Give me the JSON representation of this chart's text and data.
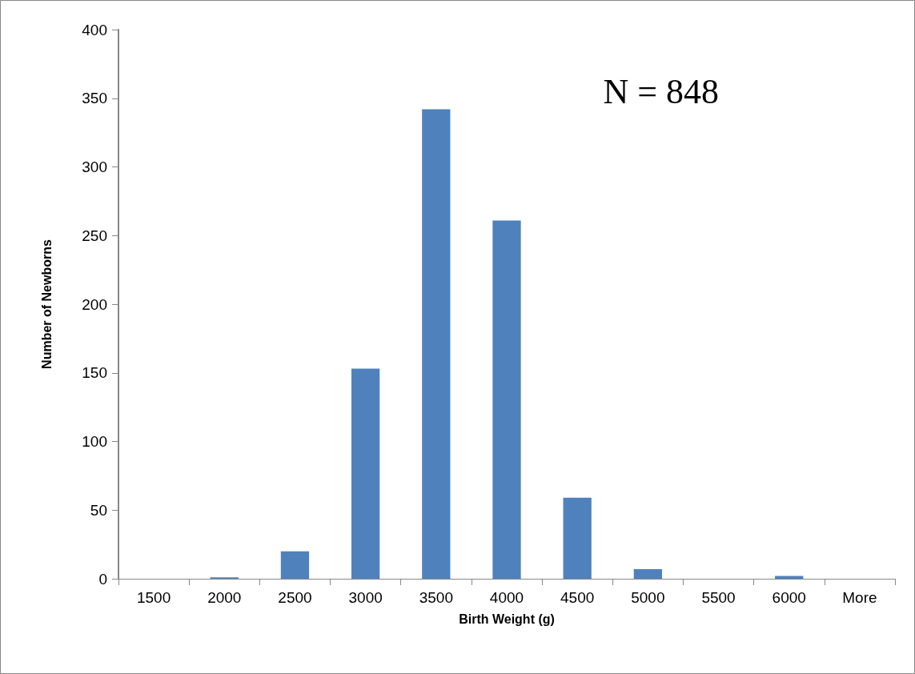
{
  "chart_data": {
    "type": "bar",
    "xlabel": "Birth Weight (g)",
    "ylabel": "Number of Newborns",
    "categories": [
      "1500",
      "2000",
      "2500",
      "3000",
      "3500",
      "4000",
      "4500",
      "5000",
      "5500",
      "6000",
      "More"
    ],
    "values": [
      0,
      1,
      20,
      153,
      342,
      261,
      59,
      7,
      0,
      2,
      0
    ],
    "color": "#4f81bd",
    "ylim": [
      0,
      400
    ],
    "yticks": [
      0,
      50,
      100,
      150,
      200,
      250,
      300,
      350,
      400
    ],
    "grid": false,
    "annotations": [
      "N = 848"
    ]
  }
}
